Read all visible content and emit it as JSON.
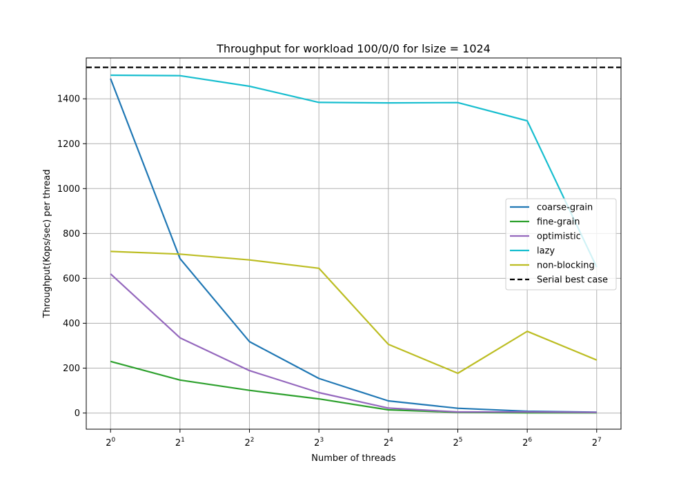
{
  "chart_data": {
    "type": "line",
    "title": "Throughput for workload 100/0/0 for lsize = 1024",
    "xlabel": "Number of threads",
    "ylabel": "Throughput(Kops/sec) per thread",
    "x_scale": "log2",
    "x": [
      1,
      2,
      4,
      8,
      16,
      32,
      64,
      128
    ],
    "x_tick_labels": [
      {
        "base": "2",
        "exp": "0"
      },
      {
        "base": "2",
        "exp": "1"
      },
      {
        "base": "2",
        "exp": "2"
      },
      {
        "base": "2",
        "exp": "3"
      },
      {
        "base": "2",
        "exp": "4"
      },
      {
        "base": "2",
        "exp": "5"
      },
      {
        "base": "2",
        "exp": "6"
      },
      {
        "base": "2",
        "exp": "7"
      }
    ],
    "y_ticks": [
      0,
      200,
      400,
      600,
      800,
      1000,
      1200,
      1400
    ],
    "y_tick_labels": [
      "0",
      "200",
      "400",
      "600",
      "800",
      "1000",
      "1200",
      "1400"
    ],
    "ylim": [
      -72,
      1582
    ],
    "grid": true,
    "legend_position": "center-right",
    "series": [
      {
        "name": "coarse-grain",
        "color": "#1f77b4",
        "values": [
          1490,
          688,
          318,
          154,
          54,
          21,
          8,
          4
        ]
      },
      {
        "name": "fine-grain",
        "color": "#2ca02c",
        "values": [
          230,
          147,
          101,
          63,
          14,
          3,
          1,
          1
        ]
      },
      {
        "name": "optimistic",
        "color": "#9467bd",
        "values": [
          620,
          335,
          189,
          91,
          22,
          5,
          5,
          3
        ]
      },
      {
        "name": "lazy",
        "color": "#17becf",
        "values": [
          1505,
          1503,
          1456,
          1384,
          1382,
          1383,
          1302,
          650
        ]
      },
      {
        "name": "non-blocking",
        "color": "#bcbd22",
        "values": [
          720,
          708,
          682,
          645,
          306,
          177,
          364,
          236
        ]
      }
    ],
    "reference_line": {
      "name": "Serial best case",
      "value": 1540,
      "color": "#000000",
      "style": "dashed"
    }
  }
}
